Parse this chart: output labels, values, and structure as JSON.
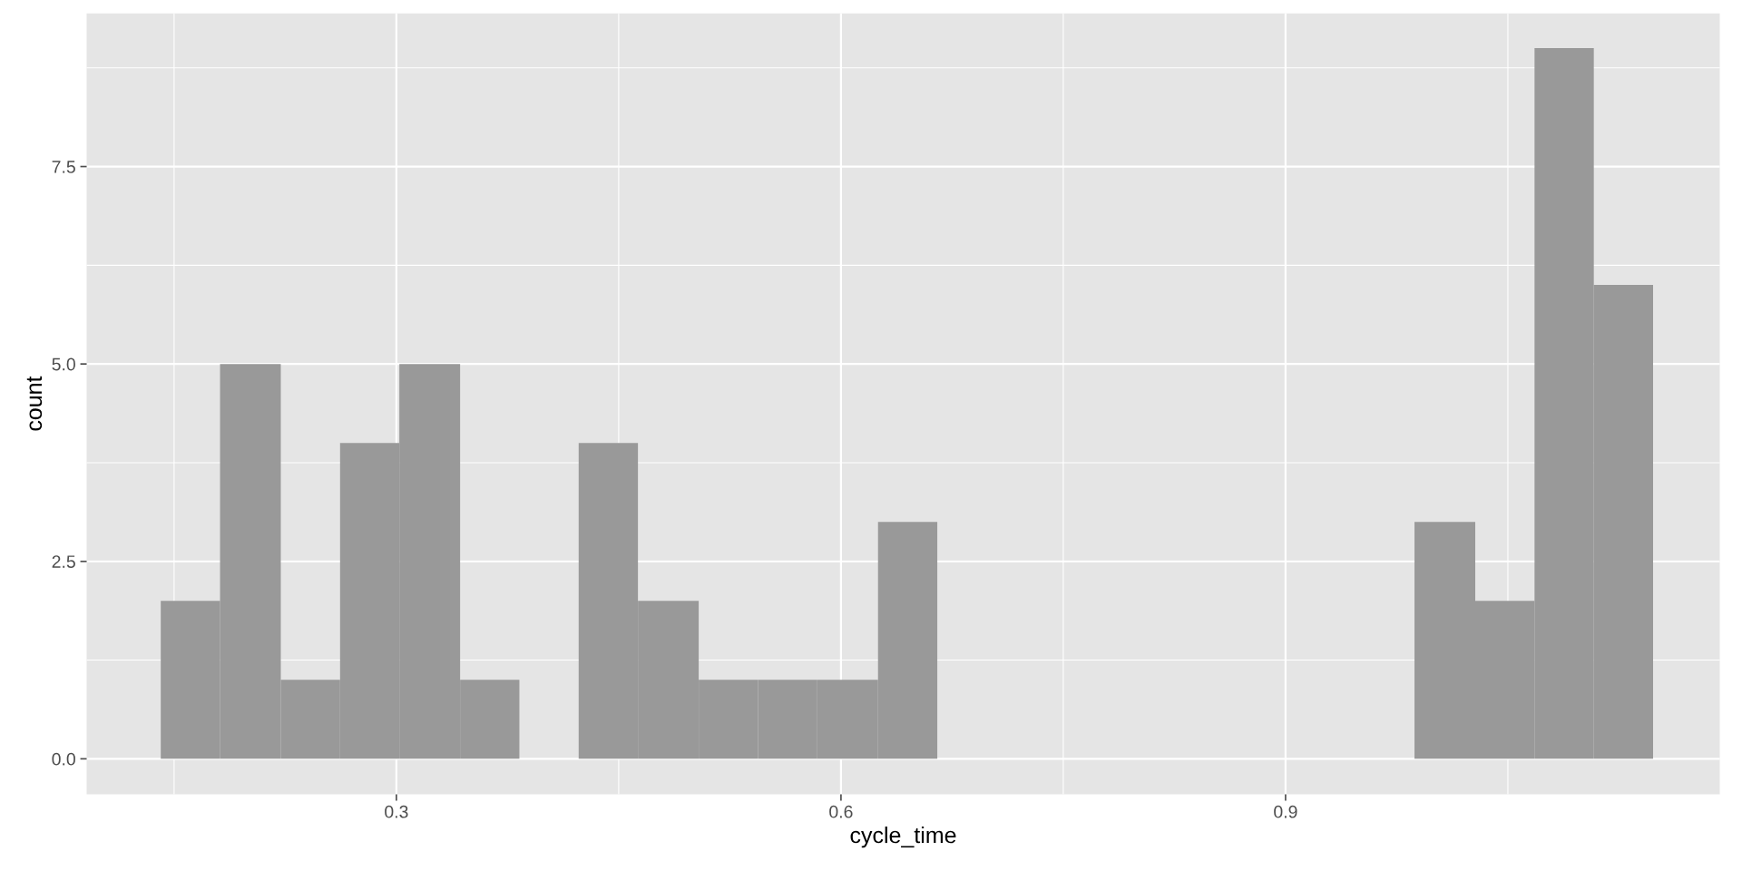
{
  "chart_data": {
    "type": "histogram",
    "xlabel": "cycle_time",
    "ylabel": "count",
    "bins": [
      0.141,
      0.181,
      0.222,
      0.262,
      0.302,
      0.343,
      0.383,
      0.423,
      0.463,
      0.504,
      0.544,
      0.584,
      0.625,
      0.665,
      0.987,
      1.028,
      1.068,
      1.108,
      1.148
    ],
    "values": [
      2,
      5,
      1,
      4,
      5,
      1,
      0,
      4,
      2,
      1,
      1,
      1,
      3,
      0,
      3,
      2,
      9,
      6
    ],
    "color": "#999999",
    "xlim": [
      0.091,
      1.193
    ],
    "ylim": [
      -0.45,
      9.44
    ],
    "xticks": [
      0.3,
      0.6,
      0.9
    ],
    "yticks": [
      {
        "value": 0,
        "label": "0.0"
      },
      {
        "value": 2.5,
        "label": "2.5"
      },
      {
        "value": 5,
        "label": "5.0"
      },
      {
        "value": 7.5,
        "label": "7.5"
      }
    ],
    "grid": true,
    "legend": false
  }
}
